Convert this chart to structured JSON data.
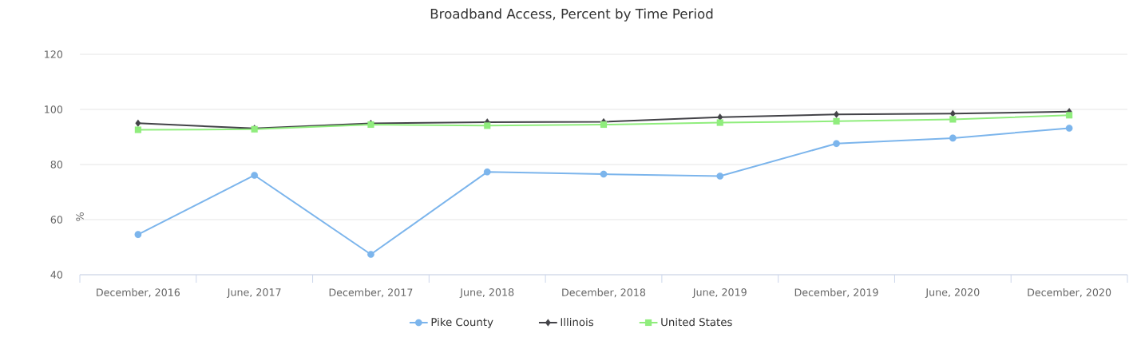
{
  "chart_data": {
    "type": "line",
    "title": "Broadband Access, Percent by Time Period",
    "ylabel": "%",
    "categories": [
      "December, 2016",
      "June, 2017",
      "December, 2017",
      "June, 2018",
      "December, 2018",
      "June, 2019",
      "December, 2019",
      "June, 2020",
      "December, 2020"
    ],
    "ylim": [
      40,
      120
    ],
    "yticks": [
      40,
      60,
      80,
      100,
      120
    ],
    "grid": "y",
    "legend": "bottom",
    "series": [
      {
        "name": "Pike County",
        "color": "#7cb5ec",
        "marker": "circle",
        "values": [
          54.6,
          76.1,
          47.4,
          77.3,
          76.5,
          75.8,
          87.6,
          89.6,
          93.2
        ]
      },
      {
        "name": "Illinois",
        "color": "#434348",
        "marker": "diamond",
        "values": [
          95.0,
          93.1,
          94.9,
          95.4,
          95.5,
          97.2,
          98.2,
          98.5,
          99.2
        ]
      },
      {
        "name": "United States",
        "color": "#90ed7d",
        "marker": "square",
        "values": [
          92.6,
          92.8,
          94.5,
          94.1,
          94.5,
          95.2,
          95.7,
          96.4,
          97.9
        ]
      }
    ]
  }
}
